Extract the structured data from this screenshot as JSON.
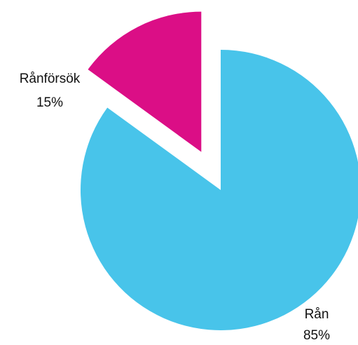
{
  "chart_data": {
    "type": "pie",
    "title": "",
    "slices": [
      {
        "label": "Rånförsök",
        "value": 15,
        "value_label": "15%",
        "color": "#DB0E86",
        "exploded": true
      },
      {
        "label": "Rån",
        "value": 85,
        "value_label": "85%",
        "color": "#48C4EA",
        "exploded": false
      }
    ],
    "start_angle_deg": 0,
    "direction": "counter-clockwise",
    "legend": "none"
  }
}
